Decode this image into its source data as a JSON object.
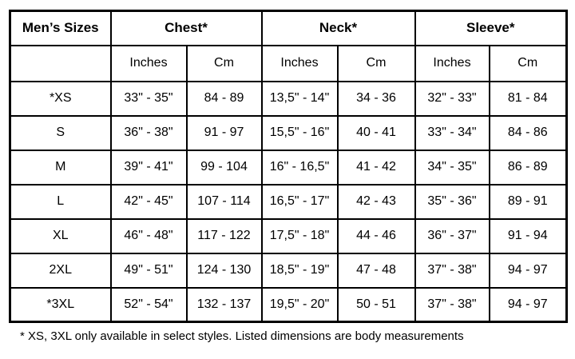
{
  "table": {
    "corner_label": "Men’s Sizes",
    "groups": [
      {
        "label": "Chest*"
      },
      {
        "label": "Neck*"
      },
      {
        "label": "Sleeve*"
      }
    ],
    "unit_headers": [
      "Inches",
      "Cm",
      "Inches",
      "Cm",
      "Inches",
      "Cm"
    ],
    "rows": [
      {
        "size": "*XS",
        "cells": [
          "33\" - 35\"",
          "84 - 89",
          "13,5\" - 14\"",
          "34 - 36",
          "32\" - 33\"",
          "81 - 84"
        ]
      },
      {
        "size": "S",
        "cells": [
          "36\" - 38\"",
          "91 - 97",
          "15,5\" - 16\"",
          "40 - 41",
          "33\" - 34\"",
          "84 - 86"
        ]
      },
      {
        "size": "M",
        "cells": [
          "39\" - 41\"",
          "99 - 104",
          "16\" - 16,5\"",
          "41 - 42",
          "34\" - 35\"",
          "86 - 89"
        ]
      },
      {
        "size": "L",
        "cells": [
          "42\" - 45\"",
          "107 - 114",
          "16,5\" - 17\"",
          "42 - 43",
          "35\" - 36\"",
          "89 - 91"
        ]
      },
      {
        "size": "XL",
        "cells": [
          "46\" - 48\"",
          "117 - 122",
          "17,5\" - 18\"",
          "44 - 46",
          "36\" - 37\"",
          "91 - 94"
        ]
      },
      {
        "size": "2XL",
        "cells": [
          "49\" - 51\"",
          "124 - 130",
          "18,5\" - 19\"",
          "47 - 48",
          "37\" - 38\"",
          "94 - 97"
        ]
      },
      {
        "size": "*3XL",
        "cells": [
          "52\" - 54\"",
          "132 - 137",
          "19,5\" - 20\"",
          "50 - 51",
          "37\" - 38\"",
          "94 - 97"
        ]
      }
    ],
    "footnote": "* XS, 3XL only available in select styles. Listed dimensions are body measurements"
  },
  "colors": {
    "border": "#000000",
    "background": "#ffffff",
    "text": "#000000"
  }
}
